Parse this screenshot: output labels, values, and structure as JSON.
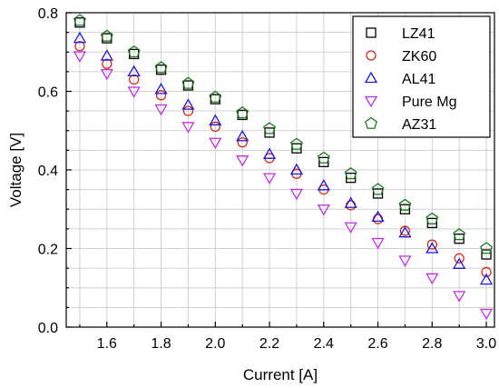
{
  "chart_data": {
    "type": "scatter",
    "xlabel": "Current [A]",
    "ylabel": "Voltage [V]",
    "xlim": [
      1.45,
      3.03
    ],
    "ylim": [
      0.0,
      0.8
    ],
    "xticks": [
      "1.6",
      "1.8",
      "2.0",
      "2.2",
      "2.4",
      "2.6",
      "2.8",
      "3.0"
    ],
    "yticks": [
      "0.0",
      "0.2",
      "0.4",
      "0.6",
      "0.8"
    ],
    "grid": true,
    "legend_position": "top-right",
    "x": [
      1.5,
      1.6,
      1.7,
      1.8,
      1.9,
      2.0,
      2.1,
      2.2,
      2.3,
      2.4,
      2.5,
      2.6,
      2.7,
      2.8,
      2.9,
      3.0
    ],
    "series": [
      {
        "name": "LZ41",
        "marker": "square",
        "color": "#000000",
        "values": [
          0.775,
          0.735,
          0.695,
          0.655,
          0.615,
          0.58,
          0.54,
          0.495,
          0.455,
          0.42,
          0.38,
          0.34,
          0.3,
          0.265,
          0.225,
          0.185
        ]
      },
      {
        "name": "ZK60",
        "marker": "circle",
        "color": "#d62a1a",
        "values": [
          0.715,
          0.67,
          0.63,
          0.59,
          0.55,
          0.51,
          0.47,
          0.43,
          0.39,
          0.35,
          0.31,
          0.275,
          0.245,
          0.21,
          0.175,
          0.14
        ]
      },
      {
        "name": "AL41",
        "marker": "triangle-up",
        "color": "#1a1ae0",
        "values": [
          0.735,
          0.69,
          0.65,
          0.605,
          0.565,
          0.525,
          0.485,
          0.44,
          0.4,
          0.36,
          0.315,
          0.28,
          0.24,
          0.2,
          0.16,
          0.12
        ]
      },
      {
        "name": "Pure Mg",
        "marker": "triangle-down",
        "color": "#c030e0",
        "values": [
          0.69,
          0.645,
          0.6,
          0.555,
          0.51,
          0.47,
          0.425,
          0.38,
          0.34,
          0.3,
          0.255,
          0.215,
          0.17,
          0.125,
          0.08,
          0.035
        ]
      },
      {
        "name": "AZ31",
        "marker": "pentagon",
        "color": "#1e7a1e",
        "values": [
          0.78,
          0.74,
          0.7,
          0.66,
          0.62,
          0.585,
          0.545,
          0.505,
          0.465,
          0.43,
          0.39,
          0.35,
          0.31,
          0.275,
          0.235,
          0.2
        ]
      }
    ]
  }
}
